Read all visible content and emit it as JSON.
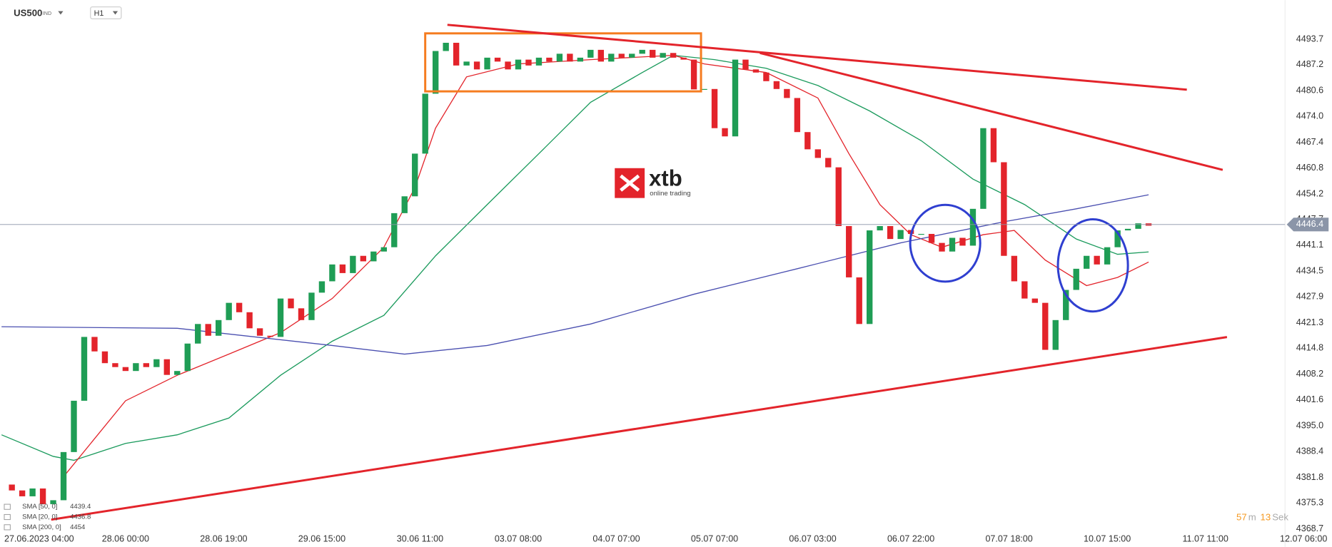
{
  "chart_data": {
    "type": "candlestick",
    "title": "US500",
    "subtitle": "IND",
    "timeframe": "H1",
    "open": 4380,
    "x": [
      -2,
      0,
      2,
      4,
      6,
      8,
      10,
      12,
      14,
      16,
      18,
      20,
      22,
      24,
      26,
      28,
      30,
      32,
      34,
      36,
      38,
      40,
      42,
      44,
      46,
      48,
      50,
      52,
      54,
      56,
      58,
      60,
      62,
      64,
      66,
      68,
      70,
      72,
      74,
      76,
      78,
      80,
      82,
      84,
      86,
      88,
      90,
      92,
      94,
      96,
      98,
      100,
      102,
      104,
      106,
      108,
      110,
      112,
      114,
      116,
      118,
      120,
      122,
      124,
      126,
      128,
      130,
      132,
      134,
      136,
      138,
      140,
      142,
      144,
      146,
      148,
      150,
      152,
      154,
      156,
      158,
      160,
      162,
      164,
      166,
      168,
      170,
      172,
      174,
      176,
      178,
      180,
      182,
      184,
      186,
      188,
      190,
      192,
      194,
      196,
      198,
      200,
      202,
      204,
      206,
      208,
      210,
      212,
      214,
      216,
      218
    ],
    "values": [
      4378.5,
      4377,
      4379,
      4375,
      4376,
      4388.3,
      4401.4,
      4417.7,
      4414,
      4411,
      4410,
      4409,
      4411,
      4410,
      4412,
      4408,
      4409,
      4416,
      4421,
      4418,
      4422,
      4426.4,
      4424,
      4419.9,
      4418,
      4417.7,
      4427.5,
      4425,
      4422,
      4429,
      4431.9,
      4436.2,
      4434,
      4438.4,
      4437,
      4439.5,
      4440.6,
      4449.3,
      4453.6,
      4464.5,
      4479.8,
      4490.7,
      4492.8,
      4487,
      4488,
      4486,
      4489,
      4488,
      4486,
      4488.5,
      4487,
      4489,
      4488,
      4490,
      4488,
      4489,
      4491,
      4488,
      4490,
      4489,
      4490,
      4491,
      4489,
      4490.2,
      4489,
      4488.5,
      4480.9,
      4481,
      4471,
      4468.9,
      4488.5,
      4486,
      4485.2,
      4483,
      4481,
      4478.7,
      4470,
      4465.6,
      4463.4,
      4461,
      4446,
      4432.9,
      4421,
      4444.9,
      4446,
      4442.7,
      4445,
      4444,
      4444,
      4441.7,
      4439.5,
      4443,
      4441,
      4450.4,
      4471,
      4462.3,
      4438.4,
      4431.9,
      4427.5,
      4426.4,
      4414.4,
      4422,
      4429.7,
      4435.1,
      4438.4,
      4436.2,
      4440.6,
      4444.9,
      4445.3,
      4446.7,
      4446.1
    ],
    "up_color": "#1f9d55",
    "down_color": "#e3242b",
    "series": [
      {
        "name": "SMA [50, 0]",
        "color": "#1a9a5c",
        "x": [
          -4,
          6,
          10,
          20,
          30,
          40,
          50,
          60,
          70,
          80,
          90,
          100,
          110,
          120,
          126,
          134,
          144,
          154,
          164,
          174,
          184,
          194,
          204,
          212,
          218
        ],
        "values": [
          4392.7,
          4387.2,
          4386.2,
          4390.5,
          4392.7,
          4397,
          4407.9,
          4416.6,
          4423.2,
          4438.4,
          4451.5,
          4464.5,
          4477.6,
          4485.2,
          4489.6,
          4488.5,
          4486.3,
          4481.9,
          4475.4,
          4467.8,
          4458,
          4451.5,
          4442.7,
          4438.8,
          4439.4
        ]
      },
      {
        "name": "SMA [20, 0]",
        "color": "#e3242b",
        "x": [
          8,
          20,
          30,
          40,
          50,
          60,
          70,
          76,
          80,
          86,
          96,
          110,
          126,
          132,
          144,
          154,
          160,
          166,
          172,
          178,
          186,
          192,
          198,
          206,
          212,
          218
        ],
        "values": [
          4382,
          4401.4,
          4407.9,
          4413.3,
          4418.8,
          4427.5,
          4440.6,
          4455.8,
          4471,
          4484.1,
          4487.4,
          4488.5,
          4489.6,
          4487.4,
          4485.2,
          4478.7,
          4464.5,
          4451.5,
          4443.8,
          4440.6,
          4443.8,
          4444.9,
          4437.3,
          4430.8,
          4432.9,
          4436.8
        ]
      },
      {
        "name": "SMA [200, 0]",
        "color": "#4a4fb0",
        "x": [
          -4,
          30,
          60,
          74,
          90,
          110,
          130,
          150,
          170,
          190,
          204,
          218
        ],
        "values": [
          4420.3,
          4419.9,
          4415.5,
          4413.3,
          4415.5,
          4421,
          4428.6,
          4435.1,
          4441.7,
          4447.1,
          4450.4,
          4454.0
        ]
      }
    ],
    "current_price": {
      "value": 4446.4,
      "label": "4446.4"
    },
    "xlim": [
      -4.3,
      253.5
    ],
    "ylim": [
      4364.3,
      4503.7
    ],
    "yticks": [
      4493.7,
      4487.2,
      4480.6,
      {
        "value": 4474,
        "label": "4474.0"
      },
      4467.4,
      4460.8,
      4454.2,
      4447.7,
      4441.1,
      4434.5,
      4427.9,
      4421.3,
      4414.8,
      4408.2,
      4401.6,
      {
        "value": 4395,
        "label": "4395.0"
      },
      4388.4,
      4381.8,
      4375.3,
      4368.7
    ],
    "xticks": [
      {
        "value": 0,
        "label": "27.06.2023  04:00"
      },
      {
        "value": 20,
        "label": "28.06  00:00"
      },
      {
        "value": 39,
        "label": "28.06  19:00"
      },
      {
        "value": 58,
        "label": "29.06  15:00"
      },
      {
        "value": 77,
        "label": "30.06  11:00"
      },
      {
        "value": 96,
        "label": "03.07  08:00"
      },
      {
        "value": 115,
        "label": "04.07  07:00"
      },
      {
        "value": 134,
        "label": "05.07  07:00"
      },
      {
        "value": 153,
        "label": "06.07  03:00"
      },
      {
        "value": 172,
        "label": "06.07  22:00"
      },
      {
        "value": 191,
        "label": "07.07  18:00"
      },
      {
        "value": 210,
        "label": "10.07  15:00"
      },
      {
        "value": 229,
        "label": "11.07  11:00"
      },
      {
        "value": 248,
        "label": "12.07  06:00"
      }
    ],
    "timer": {
      "minutes": "57",
      "minutes_unit": "m",
      "seconds": "13",
      "seconds_unit": "Sek"
    },
    "watermark": {
      "brand": "xtb",
      "tagline": "online trading"
    }
  }
}
